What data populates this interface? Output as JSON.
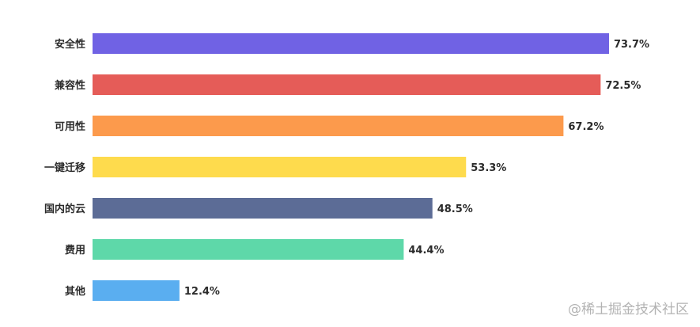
{
  "chart_data": {
    "type": "bar",
    "orientation": "horizontal",
    "categories": [
      "安全性",
      "兼容性",
      "可用性",
      "一键迁移",
      "国内的云",
      "费用",
      "其他"
    ],
    "values": [
      73.7,
      72.5,
      67.2,
      53.3,
      48.5,
      44.4,
      12.4
    ],
    "value_labels": [
      "73.7%",
      "72.5%",
      "67.2%",
      "53.3%",
      "48.5%",
      "44.4%",
      "12.4%"
    ],
    "unit": "%",
    "xlim": [
      0,
      100
    ],
    "grid": false,
    "legend": "none",
    "colors": [
      "#7062e4",
      "#e55c58",
      "#fc9a4c",
      "#fedb4d",
      "#5c6c96",
      "#5ed8a9",
      "#5aaef0"
    ]
  },
  "watermark": "@稀土掘金技术社区"
}
